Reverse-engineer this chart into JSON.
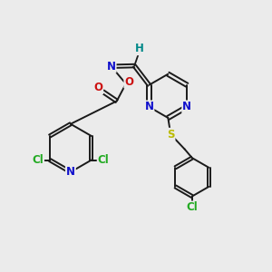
{
  "bg_color": "#ebebeb",
  "bond_color": "#1a1a1a",
  "atom_colors": {
    "N": "#1010cc",
    "O": "#cc1010",
    "S": "#bbbb00",
    "Cl": "#22aa22",
    "H": "#008888",
    "C": "#1a1a1a"
  },
  "font_size": 8.5,
  "figsize": [
    3.0,
    3.0
  ],
  "dpi": 100
}
